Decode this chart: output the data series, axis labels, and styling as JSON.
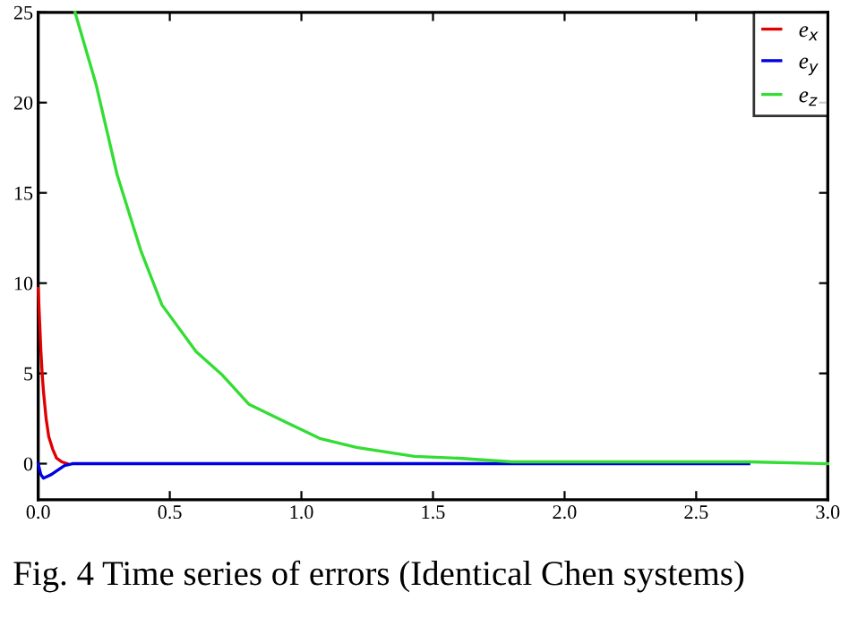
{
  "chart_data": {
    "type": "line",
    "series": [
      {
        "name": "e$_{x}$",
        "color": "#e00000",
        "x": [
          0,
          0.005,
          0.01,
          0.015,
          0.02,
          0.03,
          0.04,
          0.055,
          0.07,
          0.09,
          0.11
        ],
        "values": [
          9.7,
          8,
          6.3,
          5,
          4,
          2.5,
          1.5,
          0.8,
          0.3,
          0.1,
          0
        ]
      },
      {
        "name": "e$_{y}$",
        "color": "#0000e0",
        "x": [
          0,
          0.01,
          0.02,
          0.035,
          0.05,
          0.08,
          0.1,
          0.13,
          2.7
        ],
        "values": [
          0,
          -0.6,
          -0.8,
          -0.7,
          -0.6,
          -0.3,
          -0.1,
          0,
          0
        ]
      },
      {
        "name": "e$_{z}$",
        "color": "#33dd33",
        "x": [
          0.14,
          0.22,
          0.3,
          0.39,
          0.47,
          0.6,
          0.7,
          0.8,
          0.94,
          1.07,
          1.21,
          1.43,
          1.6,
          1.8,
          2.2,
          2.7,
          3.0
        ],
        "values": [
          25,
          21,
          16,
          11.8,
          8.8,
          6.2,
          4.9,
          3.3,
          2.3,
          1.4,
          0.9,
          0.4,
          0.3,
          0.1,
          0.1,
          0.1,
          0
        ]
      }
    ],
    "xlim": [
      0,
      3.0
    ],
    "xticks": [
      {
        "value": 0,
        "label": "0.0"
      },
      0.5,
      {
        "value": 1,
        "label": "1.0"
      },
      1.5,
      {
        "value": 2,
        "label": "2.0"
      },
      2.5,
      {
        "value": 3,
        "label": "3.0"
      }
    ],
    "ylim": [
      -2,
      25
    ],
    "yticks": [
      0,
      5,
      10,
      15,
      20,
      25
    ],
    "grid": false,
    "legend": "top right",
    "marker": "none",
    "line_style": "solid",
    "annotations": [
      "Fig. 4 Time series of errors (Identical Chen systems)"
    ]
  }
}
